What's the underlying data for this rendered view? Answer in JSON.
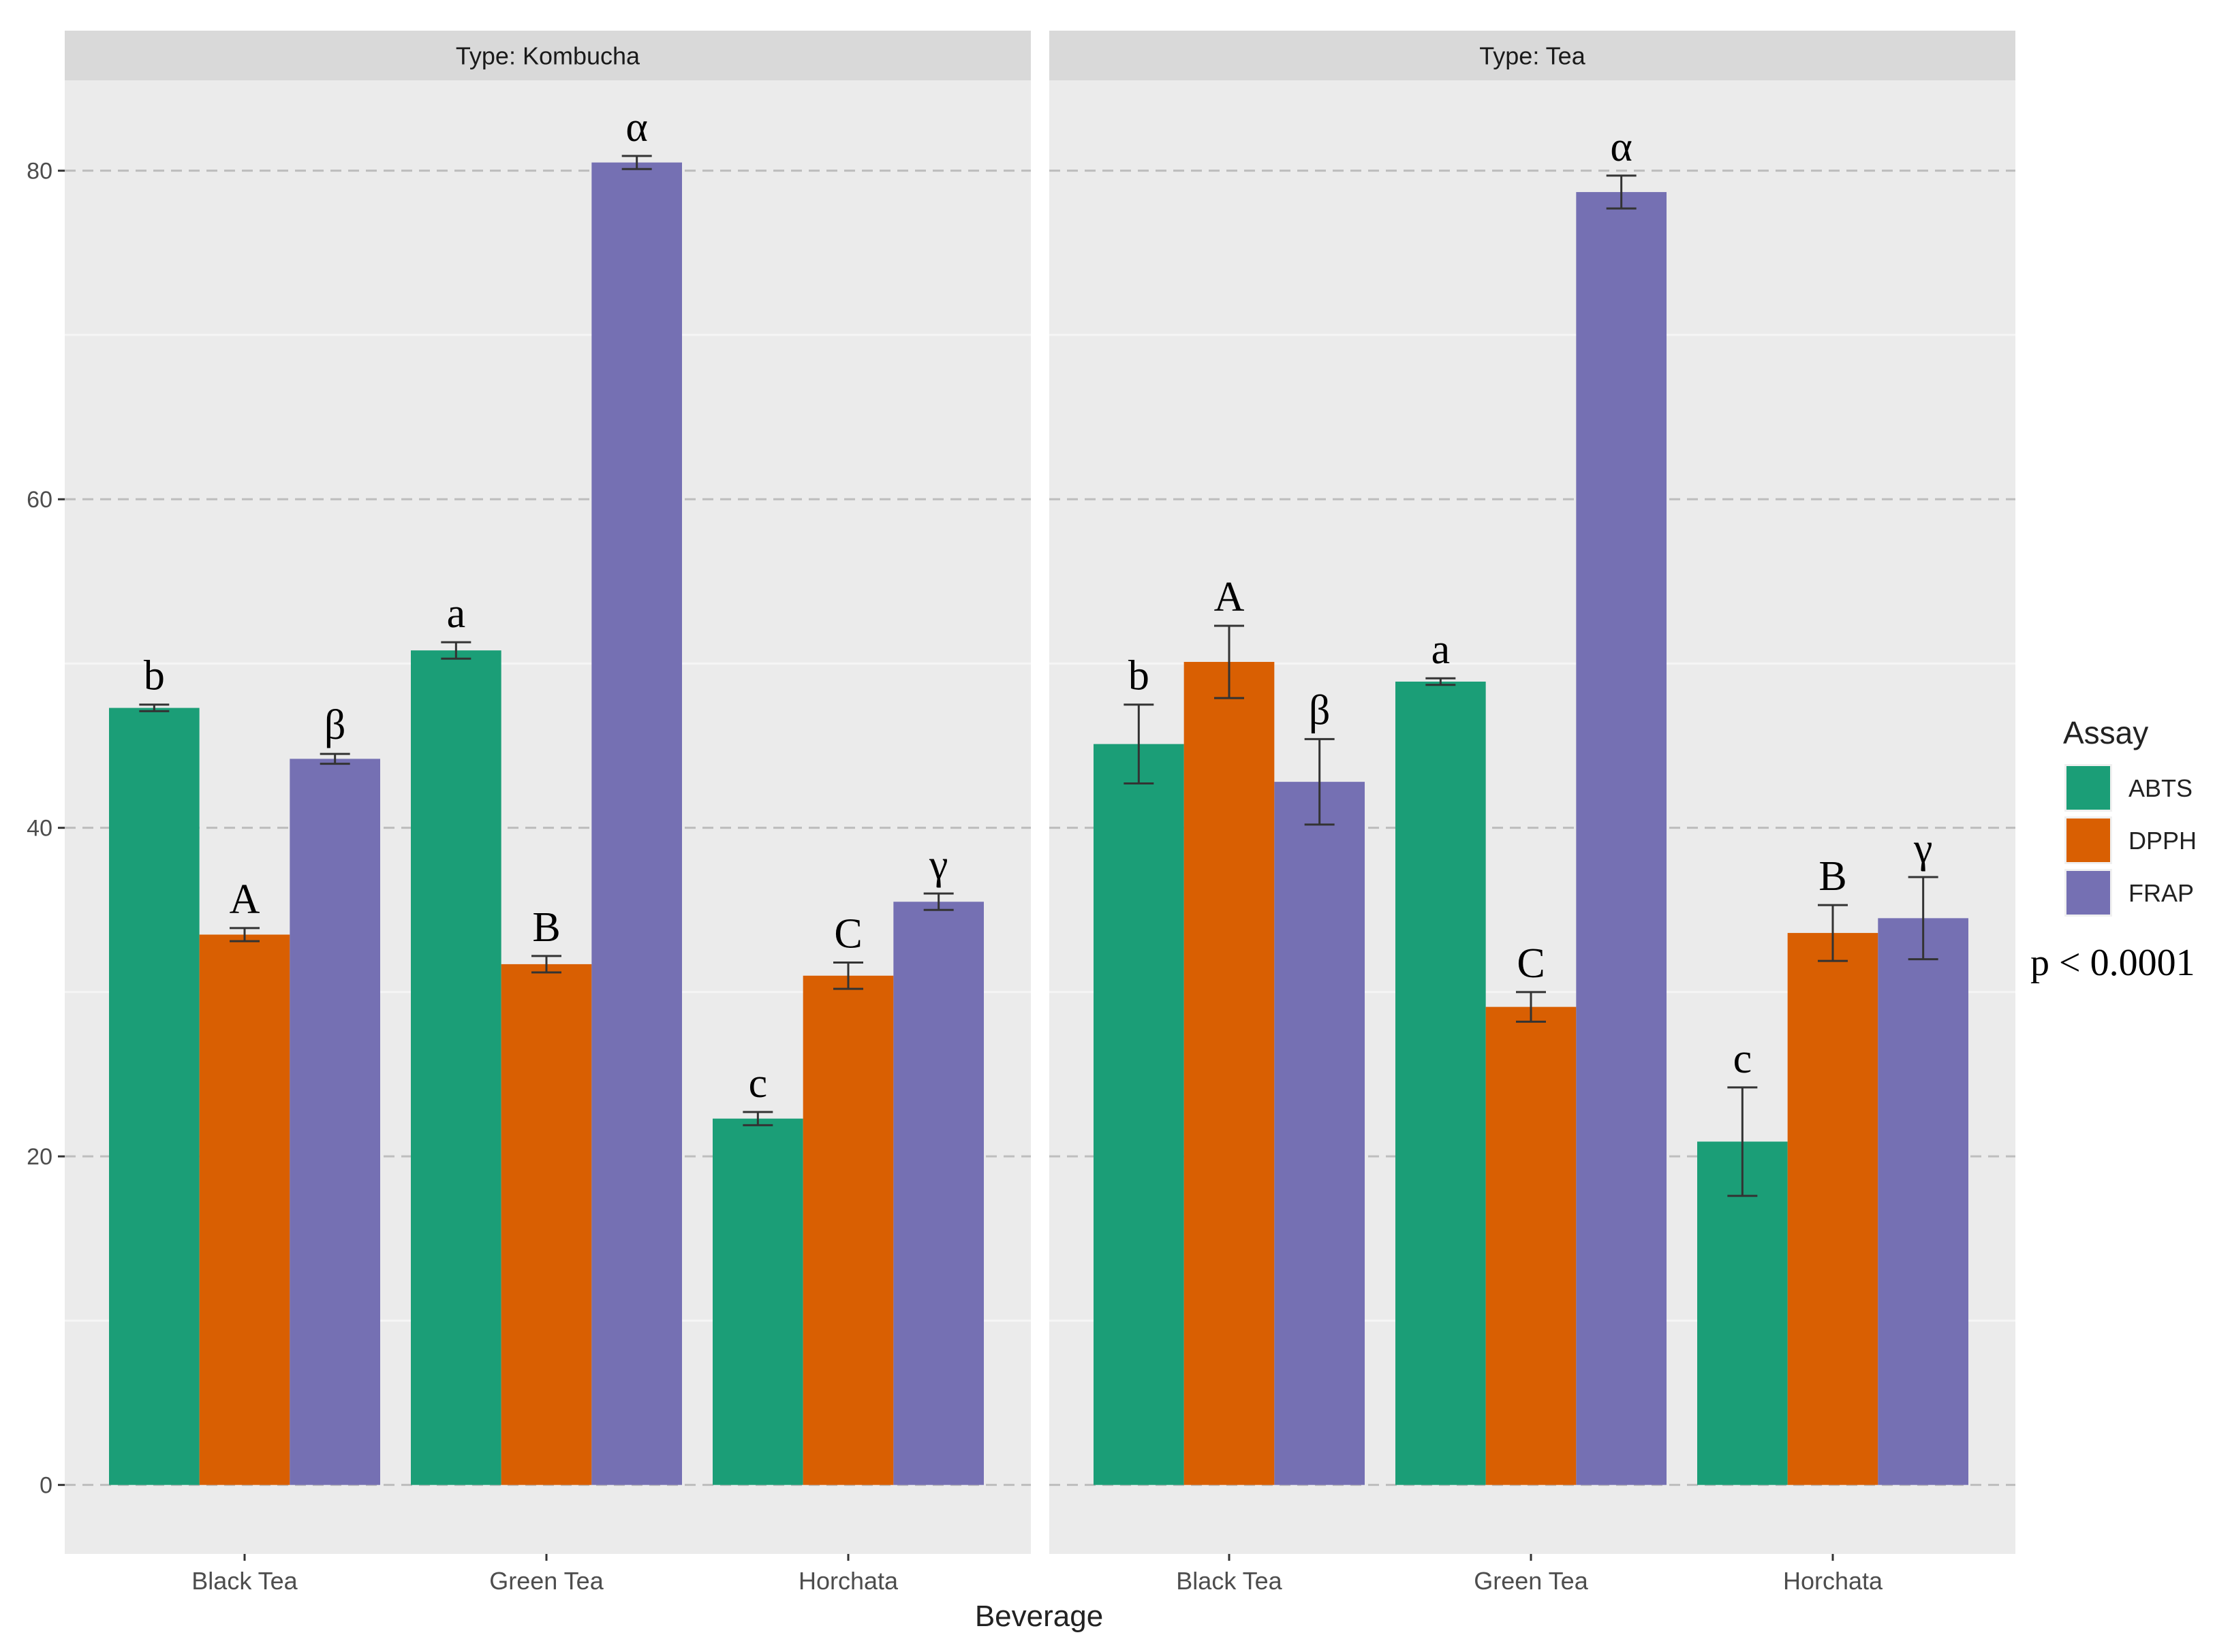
{
  "chart_data": {
    "type": "bar",
    "title": "",
    "xlabel": "Beverage",
    "ylabel": "",
    "ylim": [
      -4.2,
      85.5
    ],
    "yticks": [
      0,
      20,
      40,
      60,
      80
    ],
    "ytick_labels": [
      "0",
      "20",
      "40",
      "60",
      "80"
    ],
    "grid": true,
    "categories": [
      "Black Tea",
      "Green Tea",
      "Horchata"
    ],
    "legend": {
      "title": "Assay",
      "placement": "right",
      "entries": [
        "ABTS",
        "DPPH",
        "FRAP"
      ]
    },
    "colors": {
      "ABTS": "#1b9e77",
      "DPPH": "#d95f02",
      "FRAP": "#7570b3",
      "panel_bg": "#ebebeb",
      "strip_bg": "#d9d9d9",
      "grid_major": "#bdbdbd",
      "grid_minor": "#f5f5f5",
      "text": "#4d4d4d",
      "errorbar": "#333333"
    },
    "annotation": "p < 0.0001",
    "panels": [
      {
        "strip": "Type: Kombucha",
        "series": [
          {
            "name": "ABTS",
            "values": [
              47.3,
              50.8,
              22.3
            ],
            "errors": [
              0.2,
              0.5,
              0.4
            ],
            "letters": [
              "b",
              "a",
              "c"
            ]
          },
          {
            "name": "DPPH",
            "values": [
              33.5,
              31.7,
              31.0
            ],
            "errors": [
              0.4,
              0.5,
              0.8
            ],
            "letters": [
              "A",
              "B",
              "C"
            ]
          },
          {
            "name": "FRAP",
            "values": [
              44.2,
              80.5,
              35.5
            ],
            "errors": [
              0.3,
              0.4,
              0.5
            ],
            "letters": [
              "β",
              "α",
              "γ"
            ]
          }
        ]
      },
      {
        "strip": "Type: Tea",
        "series": [
          {
            "name": "ABTS",
            "values": [
              45.1,
              48.9,
              20.9
            ],
            "errors": [
              2.4,
              0.2,
              3.3
            ],
            "letters": [
              "b",
              "a",
              "c"
            ]
          },
          {
            "name": "DPPH",
            "values": [
              50.1,
              29.1,
              33.6
            ],
            "errors": [
              2.2,
              0.9,
              1.7
            ],
            "letters": [
              "A",
              "C",
              "B"
            ]
          },
          {
            "name": "FRAP",
            "values": [
              42.8,
              78.7,
              34.5
            ],
            "errors": [
              2.6,
              1.0,
              2.5
            ],
            "letters": [
              "β",
              "α",
              "γ"
            ]
          }
        ]
      }
    ]
  }
}
